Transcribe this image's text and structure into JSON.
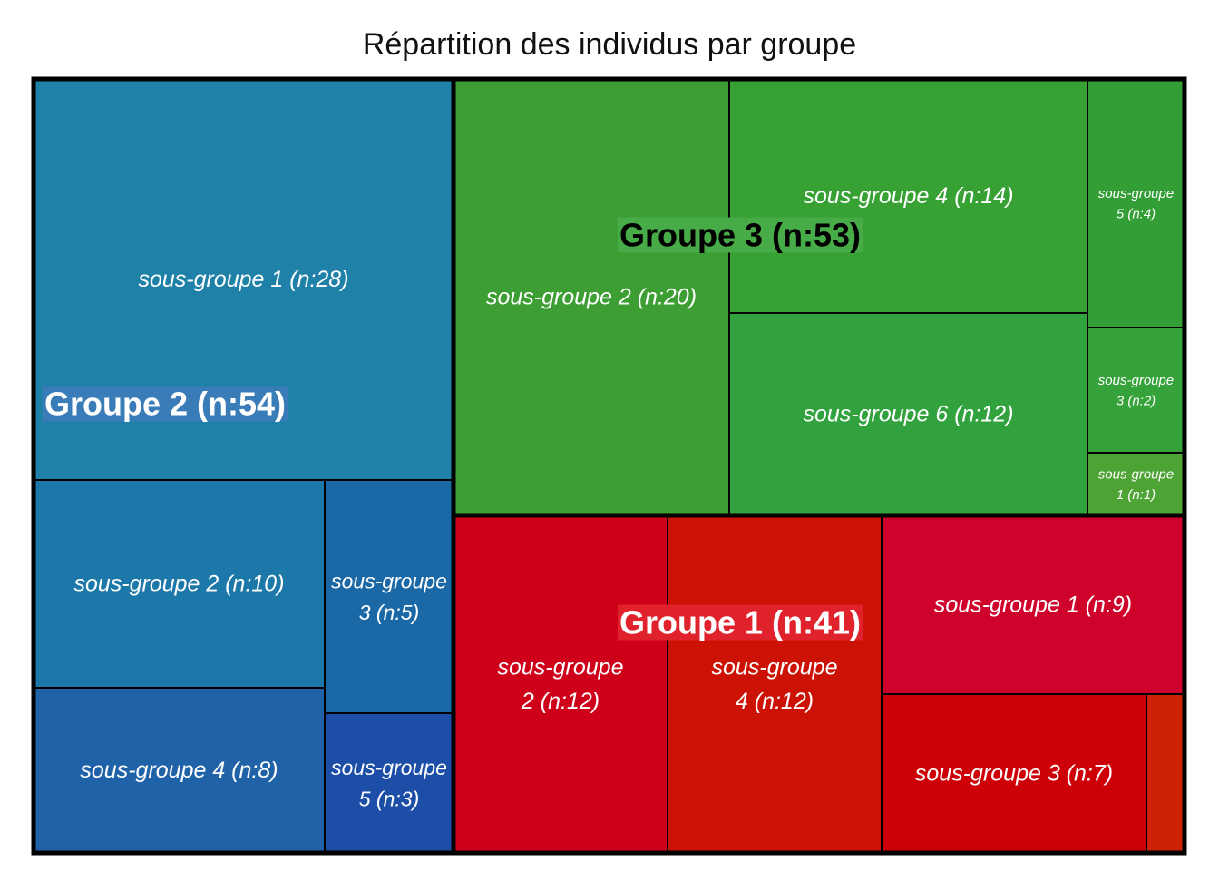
{
  "chart_data": {
    "type": "treemap",
    "title": "Répartition des individus par groupe",
    "groups": [
      {
        "name": "Groupe 2",
        "label": "Groupe 2 (n:54)",
        "value": 54,
        "label_bg": "#3a7cb8",
        "label_color": "#ffffff",
        "subgroups": [
          {
            "label_lines": [
              "sous-groupe 1 (n:28)"
            ],
            "value": 28,
            "color": "#1f80a8"
          },
          {
            "label_lines": [
              "sous-groupe 2 (n:10)"
            ],
            "value": 10,
            "color": "#1c78a8"
          },
          {
            "label_lines": [
              "sous-groupe",
              "3 (n:5)"
            ],
            "value": 5,
            "color": "#1b68a6"
          },
          {
            "label_lines": [
              "sous-groupe 4 (n:8)"
            ],
            "value": 8,
            "color": "#1f62a8"
          },
          {
            "label_lines": [
              "sous-groupe",
              "5 (n:3)"
            ],
            "value": 3,
            "color": "#1c4ea8"
          }
        ]
      },
      {
        "name": "Groupe 3",
        "label": "Groupe 3 (n:53)",
        "value": 53,
        "label_bg": "#47ab48",
        "label_color": "#000000",
        "subgroups": [
          {
            "label_lines": [
              "sous-groupe 2 (n:20)"
            ],
            "value": 20,
            "color": "#3c9e33"
          },
          {
            "label_lines": [
              "sous-groupe 4 (n:14)"
            ],
            "value": 14,
            "color": "#37a134"
          },
          {
            "label_lines": [
              "sous-groupe",
              "5 (n:4)"
            ],
            "value": 4,
            "color": "#339e36"
          },
          {
            "label_lines": [
              "sous-groupe 6 (n:12)"
            ],
            "value": 12,
            "color": "#32a23e"
          },
          {
            "label_lines": [
              "sous-groupe",
              "3 (n:2)"
            ],
            "value": 2,
            "color": "#35a33a"
          },
          {
            "label_lines": [
              "sous-groupe",
              "1 (n:1)"
            ],
            "value": 1,
            "color": "#4ea335"
          }
        ]
      },
      {
        "name": "Groupe 1",
        "label": "Groupe 1 (n:41)",
        "value": 41,
        "label_bg": "#e0222c",
        "label_color": "#ffffff",
        "subgroups": [
          {
            "label_lines": [
              "sous-groupe",
              "2 (n:12)"
            ],
            "value": 12,
            "color": "#cf0019"
          },
          {
            "label_lines": [
              "sous-groupe",
              "4 (n:12)"
            ],
            "value": 12,
            "color": "#cc1205"
          },
          {
            "label_lines": [
              "sous-groupe 1 (n:9)"
            ],
            "value": 9,
            "color": "#ce022a"
          },
          {
            "label_lines": [
              "sous-groupe 3 (n:7)"
            ],
            "value": 7,
            "color": "#cc0006"
          },
          {
            "label_lines": [],
            "value": 1,
            "color": "#cc2206"
          }
        ]
      }
    ]
  }
}
